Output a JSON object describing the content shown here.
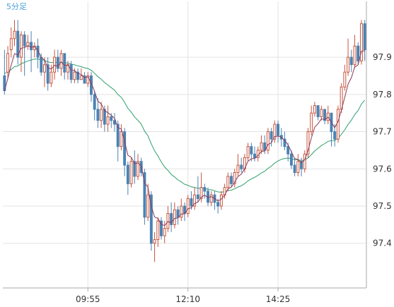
{
  "chart": {
    "timeframe_label": "5分足"
  },
  "colors": {
    "up_candle": "#c8553d",
    "down_candle": "#4a82b4",
    "ma_short": "#8b3a5a",
    "ma_long": "#2e9e6b",
    "grid": "#e3e3e3",
    "axis": "#aaaaaa",
    "label": "#4a9fd6"
  },
  "chart_data": {
    "type": "candlestick",
    "title": "5分足",
    "x_tick_labels": [
      "09:55",
      "12:10",
      "14:25"
    ],
    "x_tick_index": [
      25,
      55,
      82
    ],
    "y_tick_labels": [
      "97.4",
      "97.5",
      "97.6",
      "97.7",
      "97.8",
      "97.9"
    ],
    "ylim": [
      97.28,
      98.05
    ],
    "grid": true,
    "y_axis_position": "right",
    "candles": [
      [
        97.85,
        97.81,
        97.92,
        97.8
      ],
      [
        97.86,
        97.91,
        97.93,
        97.84
      ],
      [
        97.92,
        97.95,
        97.98,
        97.9
      ],
      [
        97.95,
        97.97,
        98.0,
        97.93
      ],
      [
        97.97,
        97.9,
        98.0,
        97.88
      ],
      [
        97.9,
        97.96,
        97.97,
        97.86
      ],
      [
        97.96,
        97.93,
        97.97,
        97.85
      ],
      [
        97.93,
        97.94,
        97.96,
        97.92
      ],
      [
        97.94,
        97.92,
        97.97,
        97.86
      ],
      [
        97.92,
        97.93,
        97.94,
        97.9
      ],
      [
        97.93,
        97.9,
        97.95,
        97.87
      ],
      [
        97.9,
        97.86,
        97.91,
        97.85
      ],
      [
        97.86,
        97.88,
        97.9,
        97.82
      ],
      [
        97.88,
        97.83,
        97.9,
        97.81
      ],
      [
        97.83,
        97.86,
        97.88,
        97.82
      ],
      [
        97.86,
        97.9,
        97.92,
        97.84
      ],
      [
        97.9,
        97.87,
        97.92,
        97.86
      ],
      [
        97.87,
        97.91,
        97.92,
        97.85
      ],
      [
        97.91,
        97.86,
        97.91,
        97.84
      ],
      [
        97.86,
        97.88,
        97.89,
        97.84
      ],
      [
        97.88,
        97.84,
        97.89,
        97.83
      ],
      [
        97.84,
        97.86,
        97.87,
        97.83
      ],
      [
        97.86,
        97.84,
        97.87,
        97.83
      ],
      [
        97.84,
        97.85,
        97.87,
        97.84
      ],
      [
        97.85,
        97.83,
        97.86,
        97.83
      ],
      [
        97.83,
        97.85,
        97.86,
        97.82
      ],
      [
        97.85,
        97.8,
        97.86,
        97.78
      ],
      [
        97.8,
        97.76,
        97.81,
        97.73
      ],
      [
        97.76,
        97.73,
        97.79,
        97.71
      ],
      [
        97.73,
        97.76,
        97.78,
        97.71
      ],
      [
        97.76,
        97.72,
        97.77,
        97.7
      ],
      [
        97.72,
        97.74,
        97.77,
        97.7
      ],
      [
        97.74,
        97.73,
        97.75,
        97.71
      ],
      [
        97.73,
        97.72,
        97.75,
        97.7
      ],
      [
        97.72,
        97.66,
        97.73,
        97.62
      ],
      [
        97.66,
        97.7,
        97.72,
        97.65
      ],
      [
        97.7,
        97.61,
        97.71,
        97.58
      ],
      [
        97.61,
        97.56,
        97.62,
        97.53
      ],
      [
        97.56,
        97.62,
        97.63,
        97.55
      ],
      [
        97.62,
        97.58,
        97.65,
        97.56
      ],
      [
        97.58,
        97.62,
        97.64,
        97.57
      ],
      [
        97.62,
        97.59,
        97.63,
        97.58
      ],
      [
        97.59,
        97.47,
        97.6,
        97.45
      ],
      [
        97.47,
        97.53,
        97.56,
        97.46
      ],
      [
        97.53,
        97.4,
        97.54,
        97.38
      ],
      [
        97.4,
        97.41,
        97.43,
        97.35
      ],
      [
        97.41,
        97.46,
        97.47,
        97.39
      ],
      [
        97.46,
        97.42,
        97.47,
        97.41
      ],
      [
        97.42,
        97.44,
        97.46,
        97.4
      ],
      [
        97.44,
        97.48,
        97.5,
        97.43
      ],
      [
        97.48,
        97.45,
        97.51,
        97.43
      ],
      [
        97.45,
        97.49,
        97.51,
        97.44
      ],
      [
        97.49,
        97.47,
        97.5,
        97.45
      ],
      [
        97.47,
        97.5,
        97.52,
        97.46
      ],
      [
        97.5,
        97.48,
        97.51,
        97.46
      ],
      [
        97.48,
        97.52,
        97.53,
        97.47
      ],
      [
        97.52,
        97.5,
        97.54,
        97.49
      ],
      [
        97.5,
        97.53,
        97.55,
        97.49
      ],
      [
        97.53,
        97.52,
        97.58,
        97.51
      ],
      [
        97.52,
        97.55,
        97.59,
        97.51
      ],
      [
        97.55,
        97.54,
        97.56,
        97.52
      ],
      [
        97.54,
        97.51,
        97.55,
        97.5
      ],
      [
        97.51,
        97.53,
        97.54,
        97.5
      ],
      [
        97.53,
        97.51,
        97.54,
        97.49
      ],
      [
        97.51,
        97.5,
        97.52,
        97.48
      ],
      [
        97.5,
        97.53,
        97.54,
        97.49
      ],
      [
        97.53,
        97.55,
        97.56,
        97.52
      ],
      [
        97.55,
        97.58,
        97.59,
        97.54
      ],
      [
        97.58,
        97.56,
        97.59,
        97.55
      ],
      [
        97.56,
        97.59,
        97.6,
        97.55
      ],
      [
        97.59,
        97.61,
        97.64,
        97.58
      ],
      [
        97.61,
        97.6,
        97.63,
        97.59
      ],
      [
        97.6,
        97.63,
        97.64,
        97.59
      ],
      [
        97.63,
        97.66,
        97.67,
        97.62
      ],
      [
        97.66,
        97.64,
        97.67,
        97.62
      ],
      [
        97.64,
        97.63,
        97.66,
        97.62
      ],
      [
        97.63,
        97.65,
        97.66,
        97.62
      ],
      [
        97.65,
        97.67,
        97.69,
        97.64
      ],
      [
        97.67,
        97.65,
        97.69,
        97.64
      ],
      [
        97.65,
        97.7,
        97.71,
        97.64
      ],
      [
        97.7,
        97.68,
        97.71,
        97.66
      ],
      [
        97.68,
        97.72,
        97.73,
        97.67
      ],
      [
        97.72,
        97.69,
        97.73,
        97.67
      ],
      [
        97.69,
        97.68,
        97.71,
        97.66
      ],
      [
        97.68,
        97.66,
        97.7,
        97.65
      ],
      [
        97.66,
        97.64,
        97.67,
        97.62
      ],
      [
        97.64,
        97.61,
        97.65,
        97.6
      ],
      [
        97.61,
        97.59,
        97.63,
        97.58
      ],
      [
        97.59,
        97.62,
        97.64,
        97.58
      ],
      [
        97.62,
        97.6,
        97.63,
        97.58
      ],
      [
        97.6,
        97.64,
        97.65,
        97.59
      ],
      [
        97.64,
        97.7,
        97.71,
        97.63
      ],
      [
        97.7,
        97.75,
        97.77,
        97.69
      ],
      [
        97.75,
        97.77,
        97.78,
        97.74
      ],
      [
        97.77,
        97.74,
        97.77,
        97.73
      ],
      [
        97.74,
        97.76,
        97.77,
        97.73
      ],
      [
        97.76,
        97.73,
        97.76,
        97.72
      ],
      [
        97.73,
        97.75,
        97.77,
        97.72
      ],
      [
        97.75,
        97.7,
        97.75,
        97.66
      ],
      [
        97.7,
        97.68,
        97.72,
        97.66
      ],
      [
        97.68,
        97.76,
        97.77,
        97.67
      ],
      [
        97.76,
        97.82,
        97.83,
        97.75
      ],
      [
        97.82,
        97.86,
        97.88,
        97.81
      ],
      [
        97.86,
        97.9,
        97.95,
        97.85
      ],
      [
        97.9,
        97.88,
        97.92,
        97.86
      ],
      [
        97.88,
        97.93,
        97.96,
        97.87
      ],
      [
        97.93,
        97.89,
        97.94,
        97.88
      ],
      [
        97.89,
        97.99,
        98.0,
        97.88
      ],
      [
        97.99,
        97.92,
        98.0,
        97.89
      ]
    ],
    "ma_short": "short moving average (dark red line)",
    "ma_long": "long moving average (green line)"
  }
}
